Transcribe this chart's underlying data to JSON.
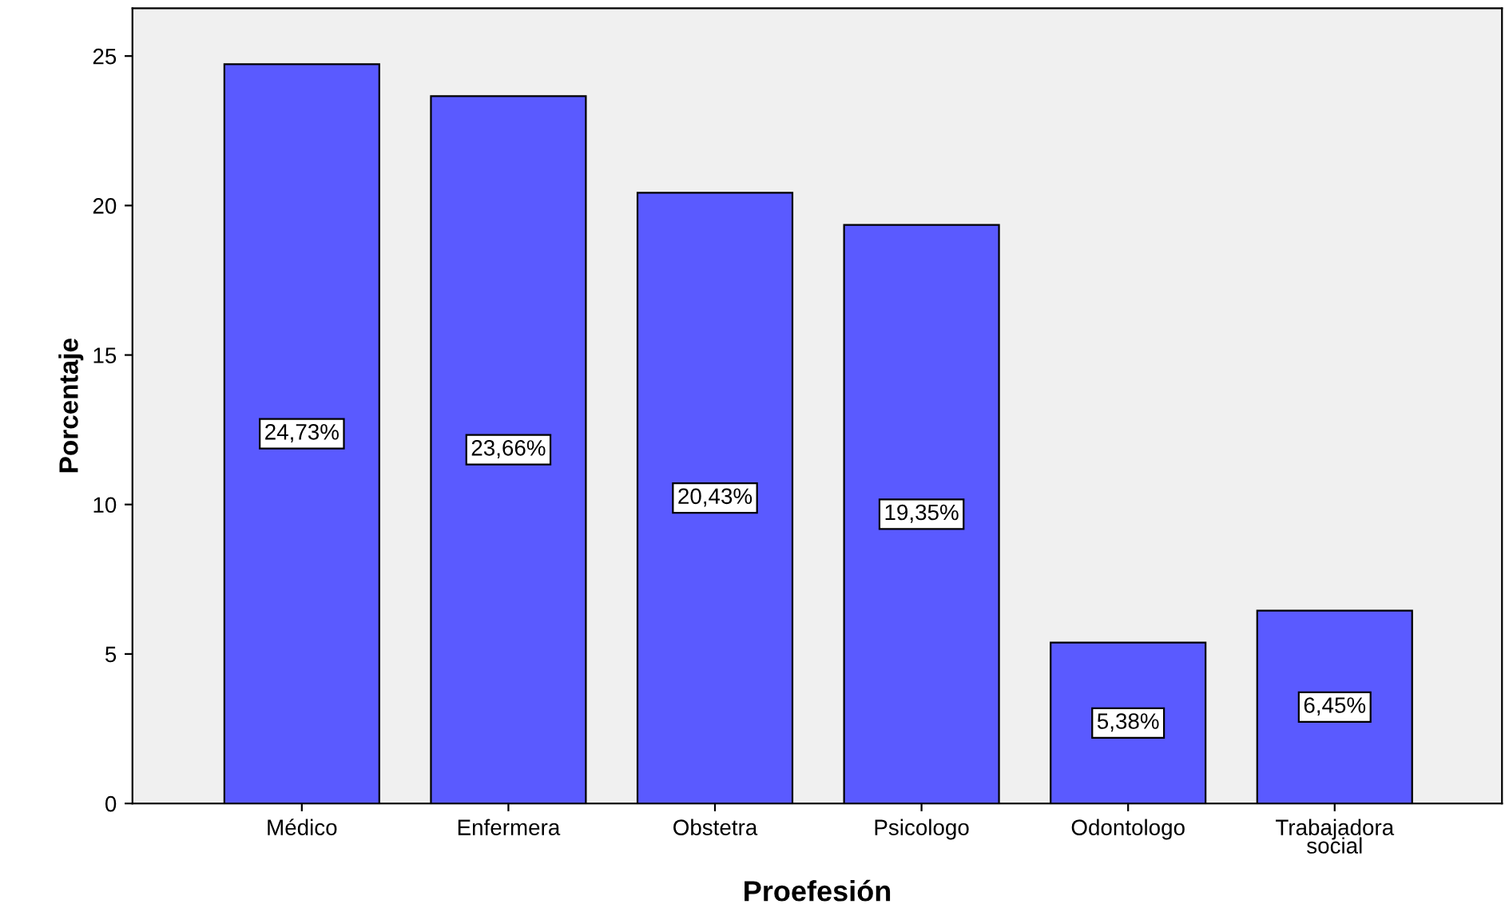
{
  "chart_data": {
    "type": "bar",
    "xlabel": "Proefesión",
    "ylabel": "Porcentaje",
    "categories": [
      "Médico",
      "Enfermera",
      "Obstetra",
      "Psicologo",
      "Odontologo",
      "Trabajadora\nsocial"
    ],
    "values": [
      24.73,
      23.66,
      20.43,
      19.35,
      5.38,
      6.45
    ],
    "value_labels": [
      "24,73%",
      "23,66%",
      "20,43%",
      "19,35%",
      "5,38%",
      "6,45%"
    ],
    "color": "#5a5aff",
    "ylim": [
      0,
      26.6
    ],
    "yticks": [
      0,
      5,
      10,
      15,
      20,
      25
    ],
    "grid": false,
    "legend": false
  }
}
